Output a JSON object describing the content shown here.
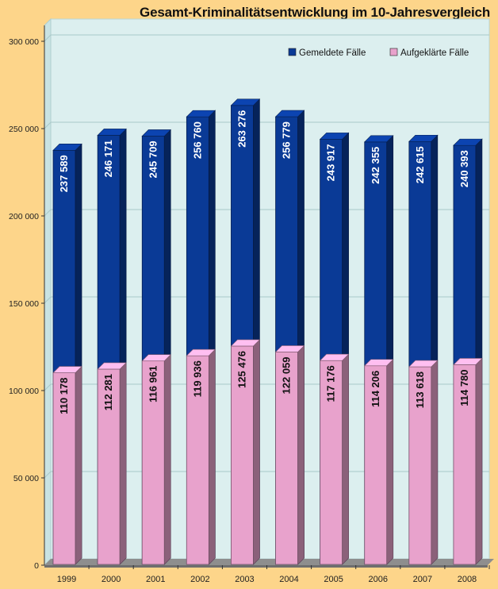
{
  "chart_data": {
    "type": "bar",
    "title": "Gesamt-Kriminalitätsentwicklung im 10-Jahresvergleich",
    "categories": [
      "1999",
      "2000",
      "2001",
      "2002",
      "2003",
      "2004",
      "2005",
      "2006",
      "2007",
      "2008"
    ],
    "series": [
      {
        "name": "Gemeldete Fälle",
        "values": [
          237589,
          246171,
          245709,
          256760,
          263276,
          256779,
          243917,
          242355,
          242615,
          240393
        ],
        "labels": [
          "237 589",
          "246 171",
          "245 709",
          "256 760",
          "263 276",
          "256 779",
          "243 917",
          "242 355",
          "242 615",
          "240 393"
        ],
        "color": "#0a3a96"
      },
      {
        "name": "Aufgeklärte Fälle",
        "values": [
          110178,
          112281,
          116961,
          119936,
          125476,
          122059,
          117176,
          114206,
          113618,
          114780
        ],
        "labels": [
          "110 178",
          "112 281",
          "116 961",
          "119 936",
          "125 476",
          "122 059",
          "117 176",
          "114 206",
          "113 618",
          "114 780"
        ],
        "color": "#e8a2cc"
      }
    ],
    "ylim": [
      0,
      300000
    ],
    "yticks": [
      0,
      50000,
      100000,
      150000,
      200000,
      250000,
      300000
    ],
    "ytick_labels": [
      "0",
      "50 000",
      "100 000",
      "150 000",
      "200 000",
      "250 000",
      "300 000"
    ],
    "grid": true,
    "legend_position": "top-right",
    "plot_background": "#dcefef"
  }
}
